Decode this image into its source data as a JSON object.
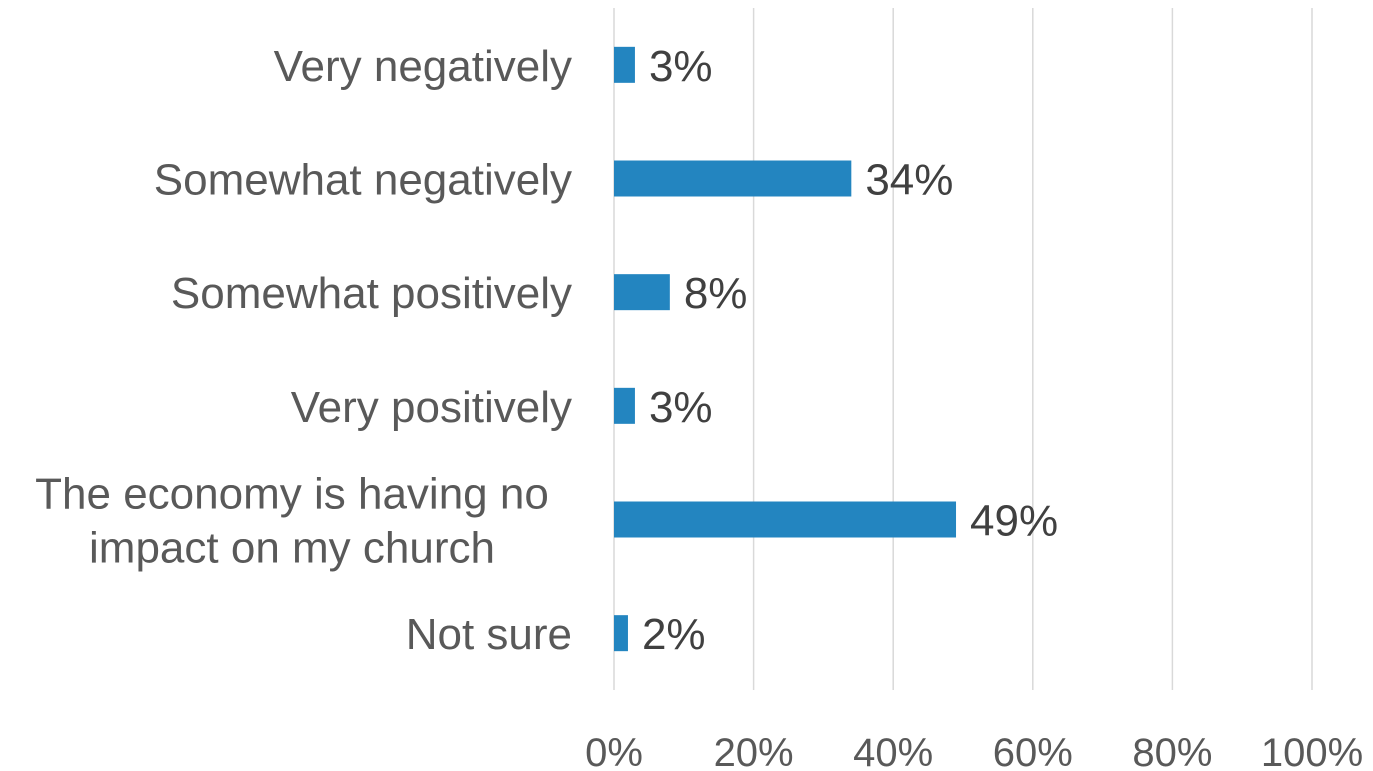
{
  "chart_data": {
    "type": "bar",
    "orientation": "horizontal",
    "title": "",
    "xlabel": "",
    "ylabel": "",
    "categories": [
      "Very negatively",
      "Somewhat negatively",
      "Somewhat positively",
      "Very positively",
      "The economy is having no impact on my church",
      "Not sure"
    ],
    "category_lines": [
      [
        "Very negatively"
      ],
      [
        "Somewhat negatively"
      ],
      [
        "Somewhat positively"
      ],
      [
        "Very positively"
      ],
      [
        "The economy is having no",
        "impact on my church"
      ],
      [
        "Not sure"
      ]
    ],
    "values": [
      3,
      34,
      8,
      3,
      49,
      2
    ],
    "data_labels": [
      "3%",
      "34%",
      "8%",
      "3%",
      "49%",
      "2%"
    ],
    "xlim": [
      0,
      100
    ],
    "x_ticks": [
      0,
      20,
      40,
      60,
      80,
      100
    ],
    "x_tick_labels": [
      "0%",
      "20%",
      "40%",
      "60%",
      "80%",
      "100%"
    ],
    "grid": true,
    "legend": "none",
    "bar_color": "#2385c0"
  }
}
